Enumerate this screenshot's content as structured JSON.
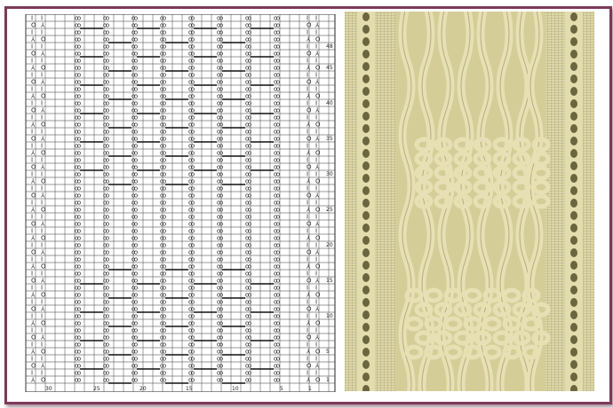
{
  "chart": {
    "row_labels": [
      "48",
      "45",
      "40",
      "35",
      "30",
      "25",
      "20",
      "15",
      "10",
      "5",
      "1"
    ],
    "column_labels": [
      "30",
      "25",
      "20",
      "15",
      "10",
      "5",
      "1"
    ],
    "symbols": {
      "yarn_over": "O",
      "decrease": "⅄",
      "knit": "I",
      "cable": "ꝏ"
    },
    "rows": 52,
    "columns": 32
  },
  "photo": {
    "subject": "knitted cable panel",
    "yarn_color": "#e6e0b4"
  },
  "frame": {
    "border_color": "#7d3a5a"
  }
}
